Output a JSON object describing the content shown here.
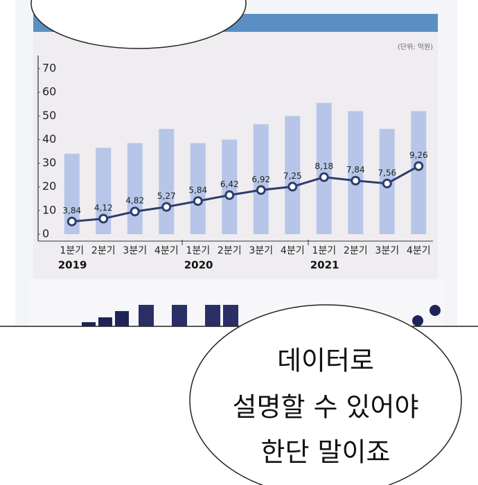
{
  "chart_data": {
    "type": "bar-line",
    "unit": "(단위: 억원)",
    "categories": [
      "1분기",
      "2분기",
      "3분기",
      "4분기",
      "1분기",
      "2분기",
      "3분기",
      "4분기",
      "1분기",
      "2분기",
      "3분기",
      "4분기"
    ],
    "years": [
      "2019",
      "2020",
      "2021"
    ],
    "series": [
      {
        "type": "bar",
        "color": "#b7c6e8",
        "values": [
          34,
          36.5,
          38.5,
          44.5,
          38.5,
          40,
          46.5,
          50,
          55.5,
          52,
          44.5,
          52
        ]
      },
      {
        "type": "line",
        "axis": "y2",
        "color": "#2e3d6b",
        "values": [
          3.84,
          4.12,
          4.82,
          5.27,
          5.84,
          6.42,
          6.92,
          7.25,
          8.18,
          7.84,
          7.56,
          9.26
        ],
        "value_labels": [
          "3,84",
          "4,12",
          "4,82",
          "5,27",
          "5,84",
          "6,42",
          "6,92",
          "7,25",
          "8,18",
          "7,84",
          "7,56",
          "9,26"
        ]
      }
    ],
    "ylim": [
      0,
      70
    ],
    "yticks": [
      0,
      10,
      20,
      30,
      40,
      50,
      60,
      70
    ],
    "y2lim": [
      2.6,
      18.8
    ]
  },
  "bubble": {
    "lines": [
      "데이터로",
      "설명할 수 있어야",
      "한단 말이죠"
    ]
  }
}
